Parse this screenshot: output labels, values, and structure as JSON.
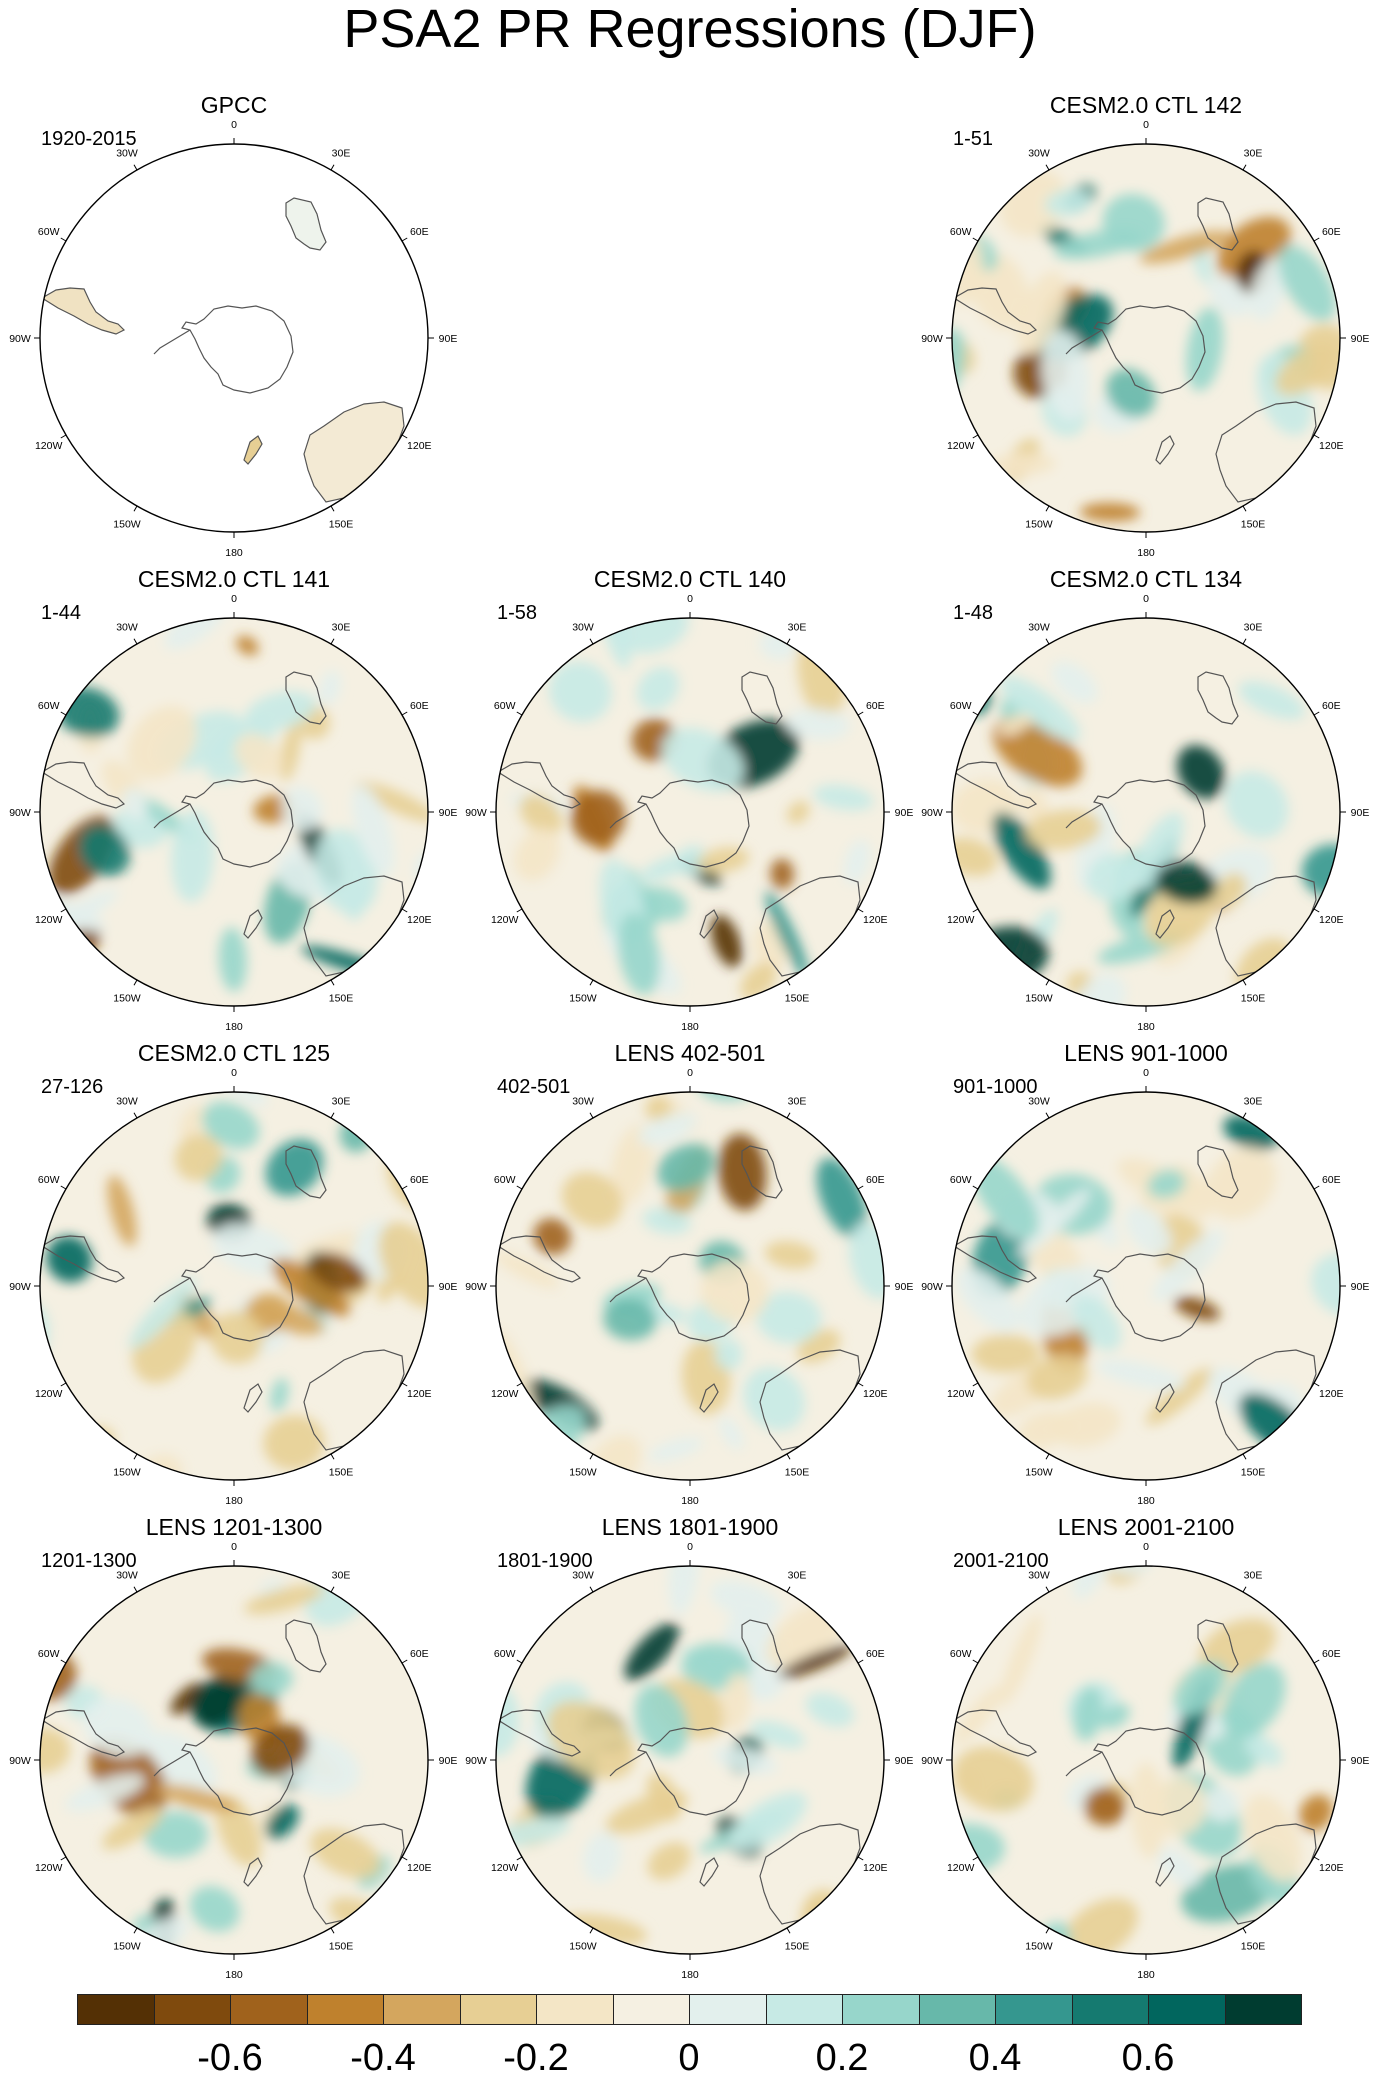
{
  "title": "PSA2 PR Regressions (DJF)",
  "panels": [
    {
      "title": "GPCC",
      "period": "1920-2015",
      "style": "obs"
    },
    null,
    {
      "title": "CESM2.0 CTL 142",
      "period": "1-51",
      "style": "model"
    },
    {
      "title": "CESM2.0 CTL 141",
      "period": "1-44",
      "style": "model"
    },
    {
      "title": "CESM2.0 CTL 140",
      "period": "1-58",
      "style": "model"
    },
    {
      "title": "CESM2.0 CTL 134",
      "period": "1-48",
      "style": "model"
    },
    {
      "title": "CESM2.0 CTL 125",
      "period": "27-126",
      "style": "model"
    },
    {
      "title": "LENS 402-501",
      "period": "402-501",
      "style": "model"
    },
    {
      "title": "LENS 901-1000",
      "period": "901-1000",
      "style": "model"
    },
    {
      "title": "LENS 1201-1300",
      "period": "1201-1300",
      "style": "model"
    },
    {
      "title": "LENS 1801-1900",
      "period": "1801-1900",
      "style": "model"
    },
    {
      "title": "LENS 2001-2100",
      "period": "2001-2100",
      "style": "model"
    }
  ],
  "lon_labels": [
    "0",
    "30E",
    "60E",
    "90E",
    "120E",
    "150E",
    "180",
    "150W",
    "120W",
    "90W",
    "60W",
    "30W"
  ],
  "colorbar": {
    "colors": [
      "#543005",
      "#7f4a0d",
      "#a0621c",
      "#bf812d",
      "#d4a65e",
      "#e7cf94",
      "#f4e6c6",
      "#f5f0e2",
      "#e3f0ed",
      "#c7eae5",
      "#97d6cb",
      "#67b8aa",
      "#35978f",
      "#157a70",
      "#01665e",
      "#003c30"
    ],
    "tick_labels": [
      "-0.6",
      "-0.4",
      "-0.2",
      "0",
      "0.2",
      "0.4",
      "0.6"
    ],
    "tick_values": [
      -0.6,
      -0.4,
      -0.2,
      0,
      0.2,
      0.4,
      0.6
    ]
  }
}
